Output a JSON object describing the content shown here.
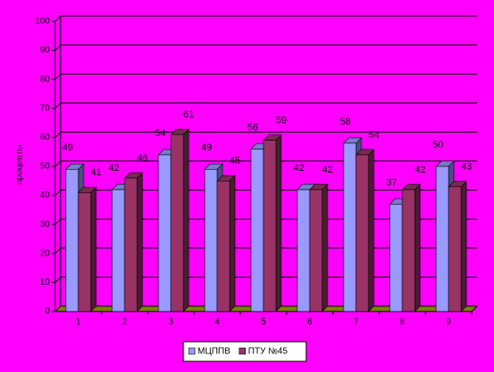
{
  "chart_data": {
    "type": "bar3d",
    "y_label": "проценты",
    "categories": [
      "1",
      "2",
      "3",
      "4",
      "5",
      "6",
      "7",
      "8",
      "9"
    ],
    "series": [
      {
        "name": "МЦППВ",
        "color": "#9999ff",
        "values": [
          49,
          42,
          54,
          49,
          56,
          42,
          58,
          37,
          50
        ]
      },
      {
        "name": "ПТУ №45",
        "color": "#993366",
        "values": [
          41,
          46,
          61,
          45,
          59,
          42,
          54,
          42,
          43
        ]
      }
    ],
    "ylim": [
      0,
      100
    ],
    "yticks": [
      0,
      10,
      20,
      30,
      40,
      50,
      60,
      70,
      80,
      90,
      100
    ],
    "grid": true
  }
}
